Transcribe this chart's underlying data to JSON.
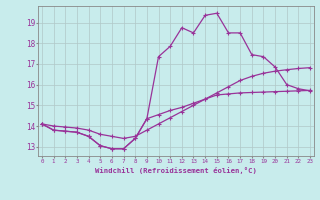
{
  "xlabel": "Windchill (Refroidissement éolien,°C)",
  "bg_color": "#c8ecec",
  "line_color": "#993399",
  "grid_color": "#b0c8c8",
  "hours": [
    0,
    1,
    2,
    3,
    4,
    5,
    6,
    7,
    8,
    9,
    10,
    11,
    12,
    13,
    14,
    15,
    16,
    17,
    18,
    19,
    20,
    21,
    22,
    23
  ],
  "line1": [
    14.1,
    13.8,
    13.75,
    13.7,
    13.5,
    13.05,
    12.9,
    12.9,
    13.4,
    14.35,
    14.55,
    14.75,
    14.9,
    15.1,
    15.3,
    15.5,
    15.55,
    15.6,
    15.62,
    15.64,
    15.66,
    15.68,
    15.7,
    15.72
  ],
  "line2": [
    14.1,
    13.8,
    13.75,
    13.7,
    13.5,
    13.05,
    12.9,
    12.9,
    13.4,
    14.35,
    17.35,
    17.85,
    18.75,
    18.5,
    19.35,
    19.45,
    18.5,
    18.5,
    17.45,
    17.35,
    16.85,
    16.0,
    15.8,
    15.7
  ],
  "line3": [
    14.1,
    14.0,
    13.95,
    13.9,
    13.8,
    13.6,
    13.5,
    13.4,
    13.5,
    13.8,
    14.1,
    14.4,
    14.7,
    15.0,
    15.3,
    15.6,
    15.9,
    16.2,
    16.4,
    16.55,
    16.65,
    16.72,
    16.78,
    16.82
  ],
  "ylim_min": 12.55,
  "ylim_max": 19.8,
  "xlim_min": -0.3,
  "xlim_max": 23.3,
  "yticks": [
    13,
    14,
    15,
    16,
    17,
    18,
    19
  ],
  "xticks": [
    0,
    1,
    2,
    3,
    4,
    5,
    6,
    7,
    8,
    9,
    10,
    11,
    12,
    13,
    14,
    15,
    16,
    17,
    18,
    19,
    20,
    21,
    22,
    23
  ]
}
